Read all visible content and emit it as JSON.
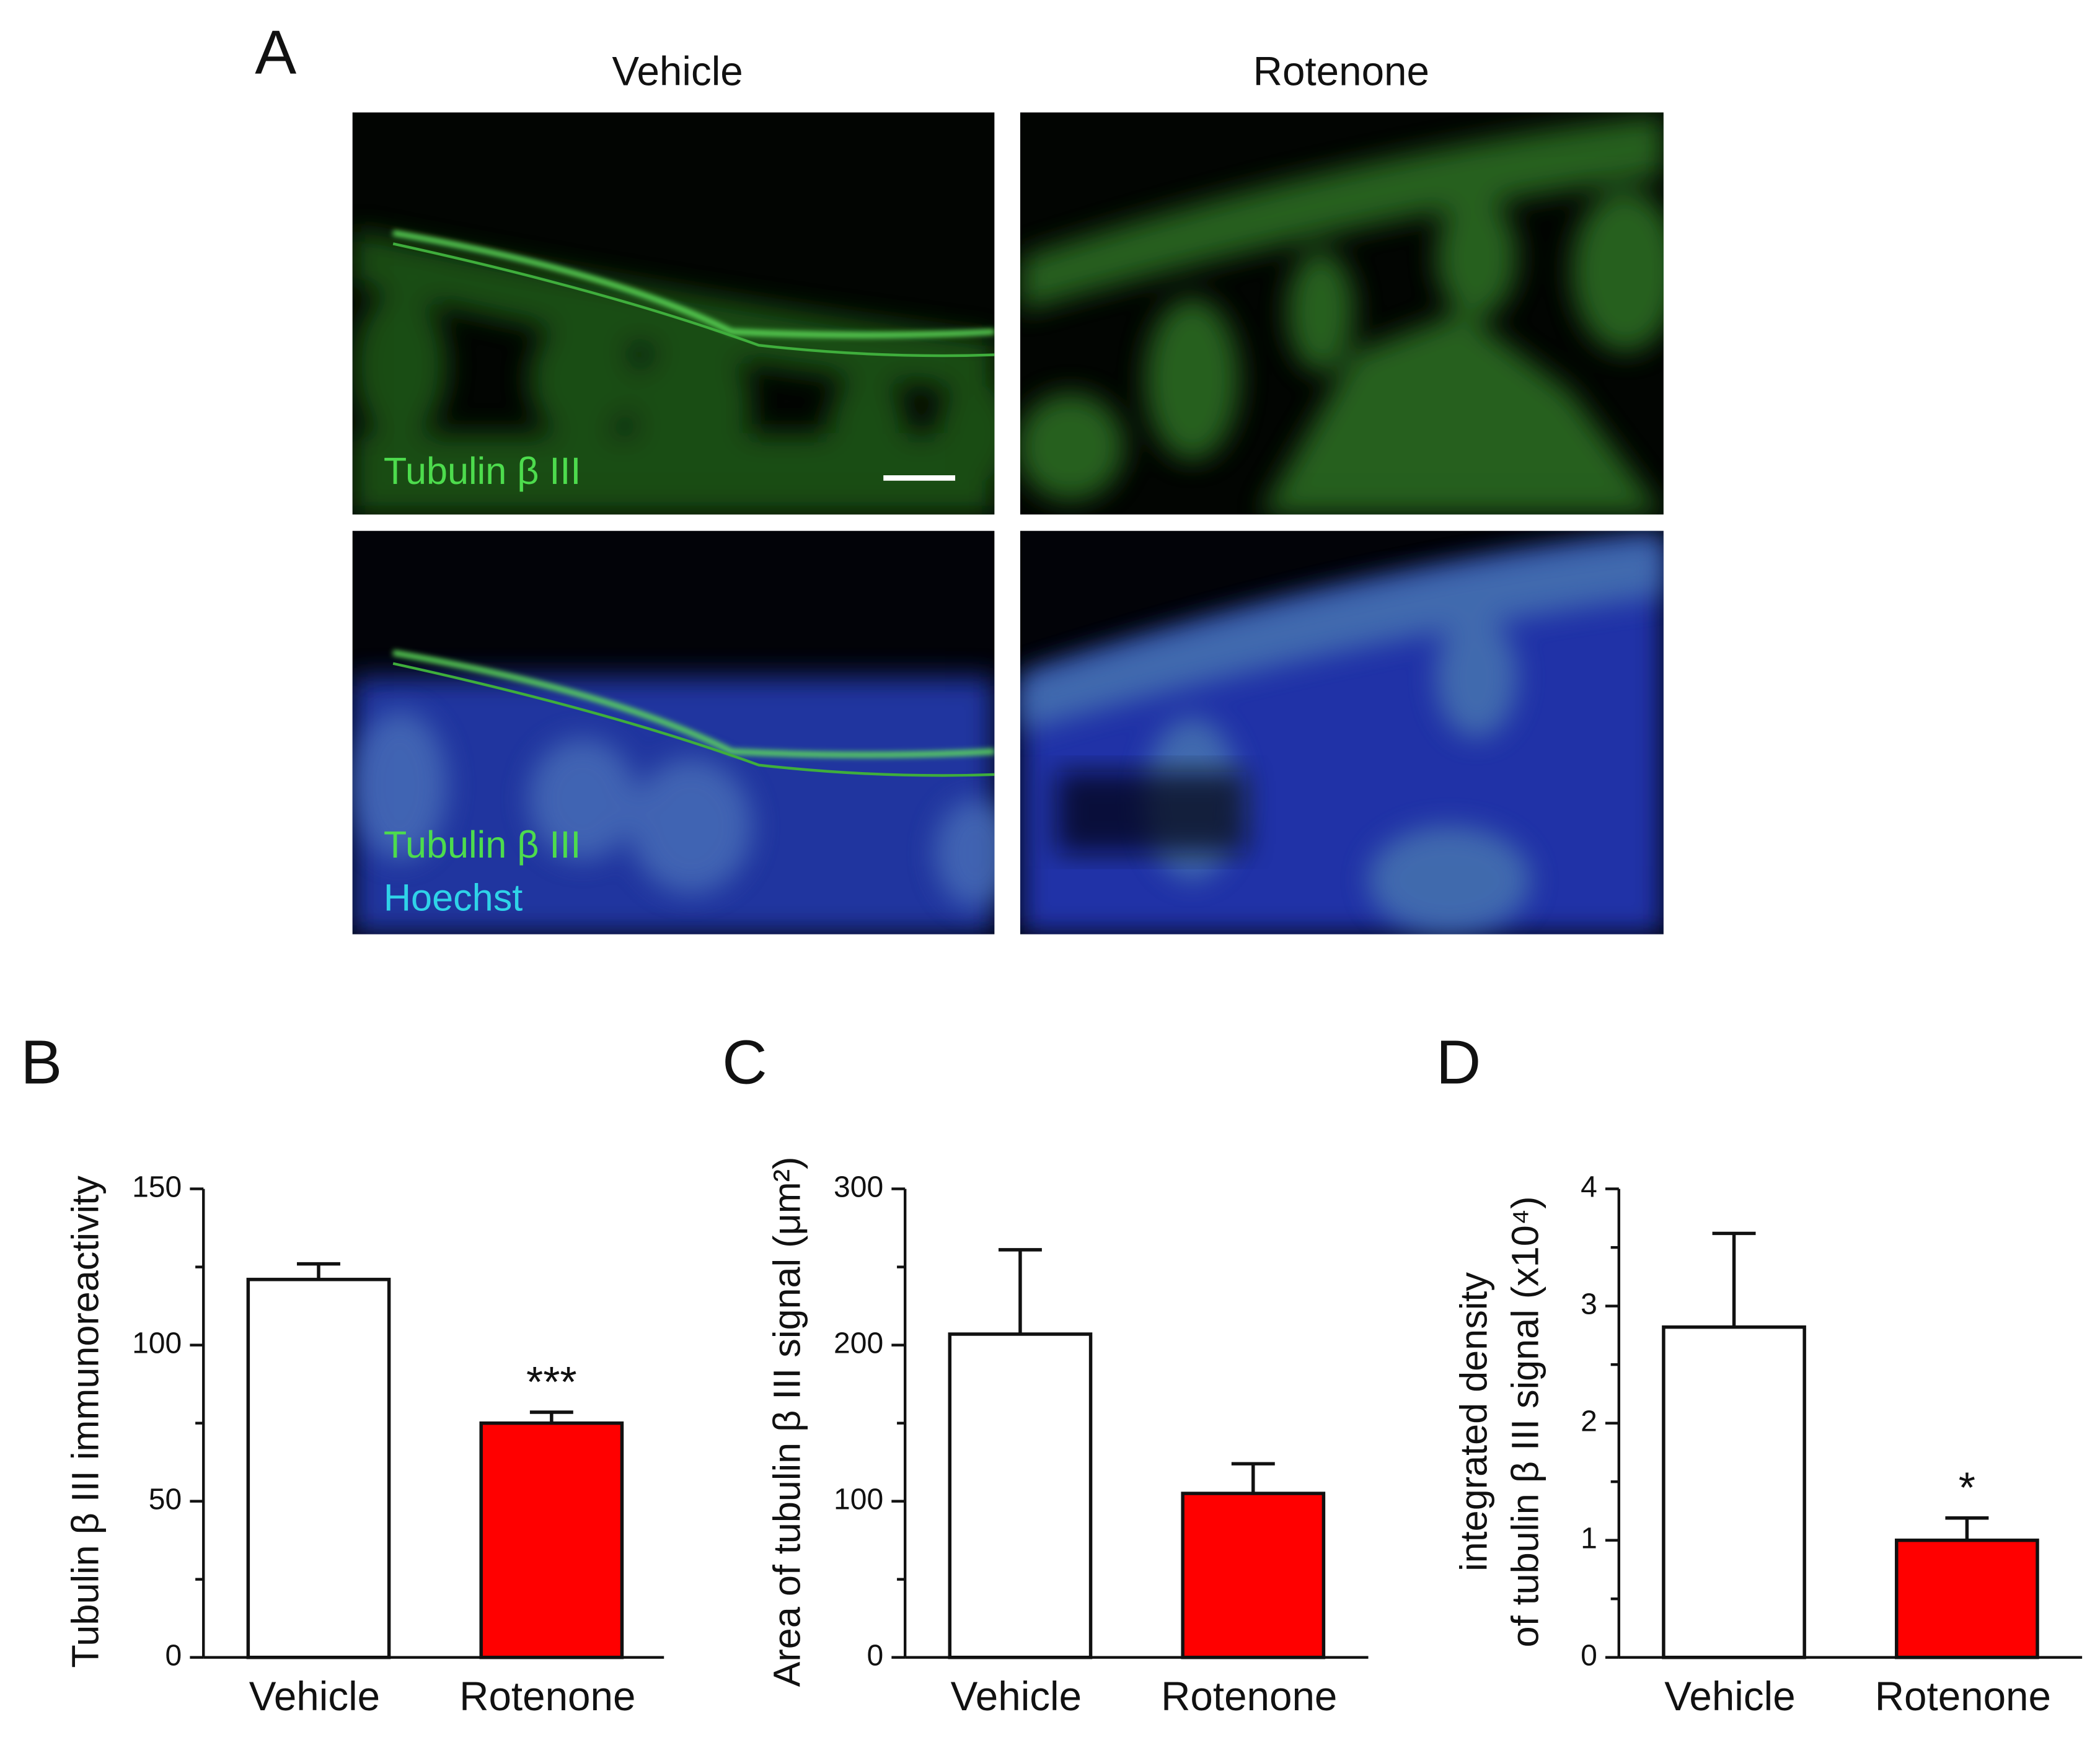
{
  "panel_a": {
    "label": "A",
    "columns": [
      "Vehicle",
      "Rotenone"
    ],
    "green_label": "Tubulin β III",
    "merge_labels": [
      "Tubulin β III",
      "Hoechst"
    ]
  },
  "chart_data": [
    {
      "type": "bar",
      "panel": "B",
      "ylabel": [
        "Tubulin β III immunoreactivity"
      ],
      "categories": [
        "Vehicle",
        "Rotenone"
      ],
      "values": [
        121,
        75
      ],
      "errors": [
        5,
        3.5
      ],
      "colors": [
        "#ffffff",
        "#ff0000"
      ],
      "annotations": [
        null,
        "***"
      ],
      "ylim": [
        0,
        150
      ],
      "yticks": [
        0,
        50,
        100,
        150
      ],
      "minor_yticks": [
        25,
        75,
        125
      ]
    },
    {
      "type": "bar",
      "panel": "C",
      "ylabel": [
        "Area of tubulin β III signal (μm²)"
      ],
      "categories": [
        "Vehicle",
        "Rotenone"
      ],
      "values": [
        207,
        105
      ],
      "errors": [
        54,
        19
      ],
      "colors": [
        "#ffffff",
        "#ff0000"
      ],
      "annotations": [
        null,
        null
      ],
      "ylim": [
        0,
        300
      ],
      "yticks": [
        0,
        100,
        200,
        300
      ],
      "minor_yticks": [
        50,
        150,
        250
      ]
    },
    {
      "type": "bar",
      "panel": "D",
      "ylabel": [
        "integrated density",
        "of tubulin β III signal (x10⁴)"
      ],
      "categories": [
        "Vehicle",
        "Rotenone"
      ],
      "values": [
        2.82,
        1.0
      ],
      "errors": [
        0.8,
        0.19
      ],
      "colors": [
        "#ffffff",
        "#ff0000"
      ],
      "annotations": [
        null,
        "*"
      ],
      "ylim": [
        0,
        4
      ],
      "yticks": [
        0,
        1,
        2,
        3,
        4
      ],
      "minor_yticks": [
        0.5,
        1.5,
        2.5,
        3.5
      ]
    }
  ]
}
